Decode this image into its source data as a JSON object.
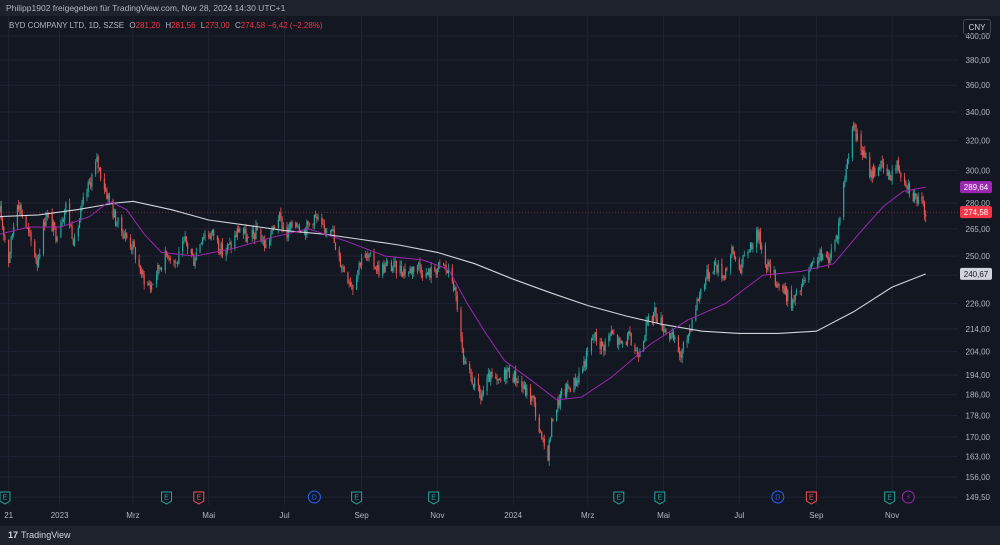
{
  "header": {
    "attribution": "Philipp1902 freigegeben für TradingView.com, Nov 28, 2024 14:30 UTC+1"
  },
  "legend": {
    "symbol": "BYD COMPANY LTD, 1D, SZSE",
    "open_label": "O",
    "open": "281,20",
    "high_label": "H",
    "high": "281,56",
    "low_label": "L",
    "low": "273,00",
    "close_label": "C",
    "close": "274,58",
    "change": "−6,42 (−2,28%)"
  },
  "currency_button": "CNY",
  "footer": {
    "logo": "TradingView",
    "logo_glyph": "17"
  },
  "colors": {
    "up": "#26a69a",
    "down": "#ef5350",
    "ma_short": "#9c27b0",
    "ma_long": "#d1d4dc",
    "bg": "#131722",
    "grid": "#1f2433",
    "last_price_line": "#f23645"
  },
  "chart_data": {
    "type": "candlestick",
    "y_scale": "log",
    "y_ticks": [
      "400,00",
      "380,00",
      "360,00",
      "340,00",
      "320,00",
      "300,00",
      "280,00",
      "265,00",
      "250,00",
      "240,00",
      "226,00",
      "214,00",
      "204,00",
      "194,00",
      "186,00",
      "178,00",
      "170,00",
      "163,00",
      "156,00",
      "149,50"
    ],
    "x_ticks": [
      "21",
      "2023",
      "Mrz",
      "Mai",
      "Jul",
      "Sep",
      "Nov",
      "2024",
      "Mrz",
      "Mai",
      "Jul",
      "Sep",
      "Nov"
    ],
    "x_tick_dates": [
      "2022-11-21",
      "2023-01-01",
      "2023-03-01",
      "2023-05-01",
      "2023-07-01",
      "2023-09-01",
      "2023-11-01",
      "2024-01-01",
      "2024-03-01",
      "2024-05-01",
      "2024-07-01",
      "2024-09-01",
      "2024-11-01"
    ],
    "x_range": [
      "2022-11-14",
      "2024-12-24"
    ],
    "price_tags": [
      {
        "value": 289.64,
        "label": "289,64",
        "color": "#9c27b0"
      },
      {
        "value": 274.58,
        "label": "274,58",
        "color": "#f23645"
      },
      {
        "value": 240.67,
        "label": "240,67",
        "color": "#d1d4dc"
      }
    ],
    "path": [
      [
        "2022-11-14",
        275
      ],
      [
        "2022-11-21",
        248
      ],
      [
        "2022-11-28",
        282
      ],
      [
        "2022-12-07",
        262
      ],
      [
        "2022-12-14",
        247
      ],
      [
        "2022-12-21",
        274
      ],
      [
        "2022-12-29",
        262
      ],
      [
        "2023-01-06",
        278
      ],
      [
        "2023-01-13",
        257
      ],
      [
        "2023-01-20",
        280
      ],
      [
        "2023-01-31",
        306
      ],
      [
        "2023-02-07",
        288
      ],
      [
        "2023-02-15",
        270
      ],
      [
        "2023-02-22",
        262
      ],
      [
        "2023-03-01",
        255
      ],
      [
        "2023-03-08",
        240
      ],
      [
        "2023-03-15",
        234
      ],
      [
        "2023-03-22",
        244
      ],
      [
        "2023-03-29",
        252
      ],
      [
        "2023-04-05",
        246
      ],
      [
        "2023-04-12",
        258
      ],
      [
        "2023-04-19",
        248
      ],
      [
        "2023-04-26",
        262
      ],
      [
        "2023-05-05",
        262
      ],
      [
        "2023-05-12",
        252
      ],
      [
        "2023-05-19",
        256
      ],
      [
        "2023-05-26",
        266
      ],
      [
        "2023-06-02",
        258
      ],
      [
        "2023-06-09",
        264
      ],
      [
        "2023-06-16",
        255
      ],
      [
        "2023-06-26",
        272
      ],
      [
        "2023-07-03",
        262
      ],
      [
        "2023-07-10",
        270
      ],
      [
        "2023-07-17",
        264
      ],
      [
        "2023-07-25",
        272
      ],
      [
        "2023-08-01",
        264
      ],
      [
        "2023-08-08",
        268
      ],
      [
        "2023-08-11",
        252
      ],
      [
        "2023-08-18",
        243
      ],
      [
        "2023-08-25",
        235
      ],
      [
        "2023-09-01",
        250
      ],
      [
        "2023-09-08",
        248
      ],
      [
        "2023-09-15",
        243
      ],
      [
        "2023-09-22",
        245
      ],
      [
        "2023-10-09",
        242
      ],
      [
        "2023-10-16",
        246
      ],
      [
        "2023-10-23",
        240
      ],
      [
        "2023-10-30",
        243
      ],
      [
        "2023-11-06",
        245
      ],
      [
        "2023-11-13",
        238
      ],
      [
        "2023-11-17",
        225
      ],
      [
        "2023-11-22",
        198
      ],
      [
        "2023-11-29",
        192
      ],
      [
        "2023-12-06",
        185
      ],
      [
        "2023-12-13",
        193
      ],
      [
        "2023-12-20",
        190
      ],
      [
        "2023-12-27",
        196
      ],
      [
        "2024-01-03",
        193
      ],
      [
        "2024-01-10",
        188
      ],
      [
        "2024-01-17",
        184
      ],
      [
        "2024-01-24",
        168
      ],
      [
        "2024-01-29",
        164
      ],
      [
        "2024-02-02",
        178
      ],
      [
        "2024-02-09",
        186
      ],
      [
        "2024-02-21",
        192
      ],
      [
        "2024-02-28",
        200
      ],
      [
        "2024-03-06",
        211
      ],
      [
        "2024-03-13",
        206
      ],
      [
        "2024-03-20",
        212
      ],
      [
        "2024-03-27",
        207
      ],
      [
        "2024-04-03",
        210
      ],
      [
        "2024-04-10",
        203
      ],
      [
        "2024-04-17",
        215
      ],
      [
        "2024-04-24",
        222
      ],
      [
        "2024-04-30",
        216
      ],
      [
        "2024-05-10",
        208
      ],
      [
        "2024-05-15",
        202
      ],
      [
        "2024-05-20",
        210
      ],
      [
        "2024-05-27",
        225
      ],
      [
        "2024-06-03",
        238
      ],
      [
        "2024-06-11",
        246
      ],
      [
        "2024-06-18",
        240
      ],
      [
        "2024-06-25",
        252
      ],
      [
        "2024-07-02",
        244
      ],
      [
        "2024-07-09",
        255
      ],
      [
        "2024-07-16",
        262
      ],
      [
        "2024-07-23",
        246
      ],
      [
        "2024-07-30",
        238
      ],
      [
        "2024-08-06",
        232
      ],
      [
        "2024-08-13",
        226
      ],
      [
        "2024-08-20",
        234
      ],
      [
        "2024-08-27",
        242
      ],
      [
        "2024-09-03",
        250
      ],
      [
        "2024-09-10",
        248
      ],
      [
        "2024-09-18",
        262
      ],
      [
        "2024-09-24",
        296
      ],
      [
        "2024-09-30",
        330
      ],
      [
        "2024-10-09",
        310
      ],
      [
        "2024-10-15",
        298
      ],
      [
        "2024-10-22",
        304
      ],
      [
        "2024-10-29",
        296
      ],
      [
        "2024-11-05",
        304
      ],
      [
        "2024-11-12",
        294
      ],
      [
        "2024-11-19",
        284
      ],
      [
        "2024-11-28",
        275
      ]
    ],
    "ma_short": [
      [
        "2022-11-14",
        262
      ],
      [
        "2022-12-07",
        266
      ],
      [
        "2023-01-02",
        266
      ],
      [
        "2023-01-25",
        272
      ],
      [
        "2023-02-10",
        281
      ],
      [
        "2023-02-24",
        276
      ],
      [
        "2023-03-10",
        262
      ],
      [
        "2023-03-24",
        252
      ],
      [
        "2023-04-20",
        250
      ],
      [
        "2023-05-20",
        254
      ],
      [
        "2023-06-20",
        260
      ],
      [
        "2023-07-20",
        265
      ],
      [
        "2023-08-20",
        258
      ],
      [
        "2023-09-20",
        250
      ],
      [
        "2023-10-20",
        248
      ],
      [
        "2023-11-10",
        243
      ],
      [
        "2023-11-25",
        226
      ],
      [
        "2023-12-10",
        212
      ],
      [
        "2023-12-25",
        200
      ],
      [
        "2024-01-15",
        192
      ],
      [
        "2024-02-05",
        184
      ],
      [
        "2024-02-25",
        185
      ],
      [
        "2024-03-20",
        193
      ],
      [
        "2024-04-20",
        207
      ],
      [
        "2024-05-20",
        218
      ],
      [
        "2024-06-20",
        226
      ],
      [
        "2024-07-20",
        240
      ],
      [
        "2024-08-20",
        242
      ],
      [
        "2024-09-15",
        246
      ],
      [
        "2024-10-05",
        262
      ],
      [
        "2024-10-25",
        278
      ],
      [
        "2024-11-10",
        287
      ],
      [
        "2024-11-28",
        289.64
      ]
    ],
    "ma_long": [
      [
        "2022-11-14",
        272
      ],
      [
        "2022-12-15",
        273
      ],
      [
        "2023-01-15",
        276
      ],
      [
        "2023-02-15",
        280
      ],
      [
        "2023-03-01",
        281
      ],
      [
        "2023-04-01",
        276
      ],
      [
        "2023-05-01",
        270
      ],
      [
        "2023-06-01",
        267
      ],
      [
        "2023-07-01",
        264
      ],
      [
        "2023-08-01",
        262
      ],
      [
        "2023-09-01",
        259
      ],
      [
        "2023-10-01",
        256
      ],
      [
        "2023-11-01",
        252
      ],
      [
        "2023-12-01",
        246
      ],
      [
        "2024-01-01",
        238
      ],
      [
        "2024-02-01",
        231
      ],
      [
        "2024-03-01",
        225
      ],
      [
        "2024-04-01",
        220
      ],
      [
        "2024-05-01",
        216
      ],
      [
        "2024-06-01",
        213
      ],
      [
        "2024-07-01",
        212
      ],
      [
        "2024-08-01",
        212
      ],
      [
        "2024-09-01",
        213
      ],
      [
        "2024-10-01",
        222
      ],
      [
        "2024-11-01",
        234
      ],
      [
        "2024-11-28",
        240.67
      ]
    ],
    "events": [
      {
        "date": "2022-11-18",
        "label": "E",
        "kind": "earnings"
      },
      {
        "date": "2023-03-28",
        "label": "E",
        "kind": "earnings"
      },
      {
        "date": "2023-04-23",
        "label": "E",
        "kind": "earnings-miss"
      },
      {
        "date": "2023-07-25",
        "label": "D",
        "kind": "dividend"
      },
      {
        "date": "2023-08-28",
        "label": "E",
        "kind": "earnings"
      },
      {
        "date": "2023-10-29",
        "label": "E",
        "kind": "earnings"
      },
      {
        "date": "2024-03-26",
        "label": "E",
        "kind": "earnings"
      },
      {
        "date": "2024-04-28",
        "label": "E",
        "kind": "earnings"
      },
      {
        "date": "2024-08-01",
        "label": "D",
        "kind": "dividend"
      },
      {
        "date": "2024-08-28",
        "label": "E",
        "kind": "earnings-miss"
      },
      {
        "date": "2024-10-30",
        "label": "E",
        "kind": "earnings"
      },
      {
        "date": "2024-11-14",
        "label": "⚡",
        "kind": "news"
      }
    ]
  }
}
